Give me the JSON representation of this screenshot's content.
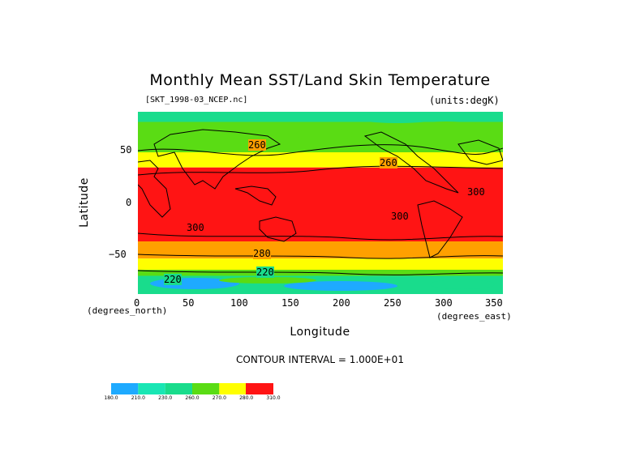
{
  "title": "Monthly Mean SST/Land Skin Temperature",
  "file_label": "[SKT_1998-03_NCEP.nc]",
  "units_label": "(units:degK)",
  "x_axis": {
    "label": "Longitude",
    "unit": "(degrees_east)",
    "ticks": [
      "0",
      "50",
      "100",
      "150",
      "200",
      "250",
      "300",
      "350"
    ]
  },
  "y_axis": {
    "label": "Latitude",
    "unit": "(degrees_north)",
    "ticks": [
      "50",
      "0",
      "−50"
    ]
  },
  "contour_interval_text": "CONTOUR INTERVAL = 1.000E+01",
  "contour_labels": [
    "260",
    "260",
    "300",
    "300",
    "300",
    "280",
    "220",
    "220",
    "300",
    "300"
  ],
  "colorbar": {
    "labels": [
      "180.0",
      "210.0",
      "230.0",
      "260.0",
      "270.0",
      "280.0",
      "310.0"
    ],
    "colors": [
      "#1eaaff",
      "#19e6b4",
      "#19dc8c",
      "#5adc14",
      "#ffff00",
      "#ffa000",
      "#ff1414"
    ]
  },
  "chart_data": {
    "type": "heatmap",
    "title": "Monthly Mean SST/Land Skin Temperature",
    "xlabel": "Longitude",
    "ylabel": "Latitude",
    "xlim": [
      0,
      360
    ],
    "ylim": [
      -90,
      90
    ],
    "x_ticks": [
      0,
      50,
      100,
      150,
      200,
      250,
      300,
      350
    ],
    "y_ticks": [
      50,
      0,
      -50
    ],
    "units": "degK",
    "contour_interval": 10,
    "levels": [
      180,
      210,
      230,
      260,
      270,
      280,
      310
    ],
    "level_colors": [
      "#1eaaff",
      "#19e6b4",
      "#19dc8c",
      "#5adc14",
      "#ffff00",
      "#ffa000",
      "#ff1414"
    ],
    "zonal_bands": [
      {
        "lat_range": [
          80,
          90
        ],
        "value": 255
      },
      {
        "lat_range": [
          70,
          80
        ],
        "value": 262
      },
      {
        "lat_range": [
          50,
          70
        ],
        "value": 268
      },
      {
        "lat_range": [
          35,
          50
        ],
        "value": 278
      },
      {
        "lat_range": [
          -38,
          35
        ],
        "value": 300
      },
      {
        "lat_range": [
          -55,
          -38
        ],
        "value": 283
      },
      {
        "lat_range": [
          -66,
          -55
        ],
        "value": 275
      },
      {
        "lat_range": [
          -72,
          -66
        ],
        "value": 268
      },
      {
        "lat_range": [
          -90,
          -72
        ],
        "value": 235
      }
    ]
  }
}
